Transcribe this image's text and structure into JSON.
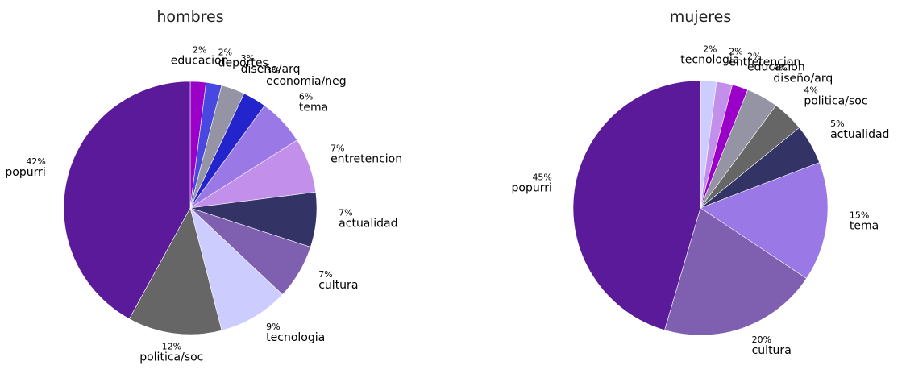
{
  "chart_data": [
    {
      "type": "pie",
      "title": "hombres",
      "categories": [
        "educacion",
        "deportes",
        "diseño/arq",
        "economia/neg",
        "tema",
        "entretencion",
        "actualidad",
        "cultura",
        "tecnologia",
        "politica/soc",
        "popurri"
      ],
      "values": [
        2,
        2,
        3,
        3,
        6,
        7,
        7,
        7,
        9,
        12,
        42
      ],
      "value_labels": [
        "2%",
        "2%",
        "3%",
        "3%",
        "6%",
        "7%",
        "7%",
        "7%",
        "9%",
        "12%",
        "42%"
      ],
      "colors": [
        "#9a00c8",
        "#4848e0",
        "#9494a4",
        "#2424cc",
        "#9a78e6",
        "#c290ea",
        "#333366",
        "#7f60b0",
        "#ccccff",
        "#666666",
        "#5a1a9a"
      ]
    },
    {
      "type": "pie",
      "title": "mujeres",
      "categories": [
        "tecnologia",
        "entretencion",
        "educacion",
        "diseño/arq",
        "politica/soc",
        "actualidad",
        "tema",
        "cultura",
        "popurri"
      ],
      "values": [
        2,
        2,
        2,
        4,
        4,
        5,
        15,
        20,
        45
      ],
      "value_labels": [
        "2%",
        "2%",
        "2%",
        "4%",
        "4%",
        "5%",
        "15%",
        "20%",
        "45%"
      ],
      "colors": [
        "#ccccff",
        "#c290ea",
        "#9a00c8",
        "#9494a4",
        "#666666",
        "#333366",
        "#9a78e6",
        "#7f60b0",
        "#5a1a9a"
      ]
    }
  ]
}
